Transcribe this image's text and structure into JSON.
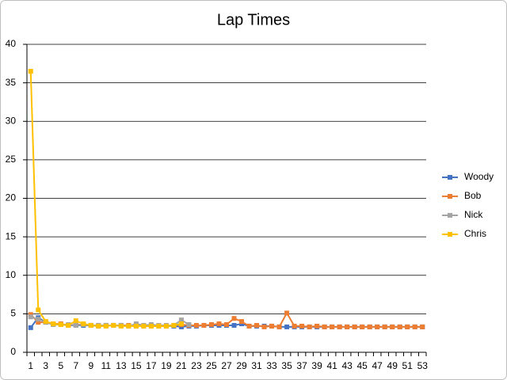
{
  "chart_data": {
    "type": "line",
    "title": "Lap Times",
    "categories": [
      "1",
      null,
      "3",
      null,
      "5",
      null,
      "7",
      null,
      "9",
      null,
      "11",
      null,
      "13",
      null,
      "15",
      null,
      "17",
      null,
      "19",
      null,
      "21",
      null,
      "23",
      null,
      "25",
      null,
      "27",
      null,
      "29",
      null,
      "31",
      null,
      "33",
      null,
      "35",
      null,
      "37",
      null,
      "39",
      null,
      "41",
      null,
      "43",
      null,
      "45",
      null,
      "47",
      null,
      "49",
      null,
      "51",
      null,
      "53"
    ],
    "series": [
      {
        "name": "Woody",
        "color": "#4472c4",
        "values": [
          3.2,
          4.5,
          3.9,
          3.6,
          3.6,
          3.5,
          3.5,
          3.5,
          3.5,
          3.4,
          3.5,
          3.5,
          3.5,
          3.4,
          3.5,
          3.4,
          3.4,
          3.4,
          3.4,
          3.4,
          3.3,
          3.4,
          3.4,
          3.5,
          3.5,
          3.5,
          3.5,
          3.5,
          3.7,
          3.4,
          3.4,
          3.4,
          3.4,
          3.3,
          3.3,
          3.3,
          3.3,
          3.3,
          3.3,
          3.3,
          3.3,
          3.3,
          3.3,
          3.3,
          3.3,
          3.3,
          3.3,
          3.3,
          3.3,
          3.3,
          3.3,
          3.3,
          3.3
        ]
      },
      {
        "name": "Bob",
        "color": "#ed7d31",
        "values": [
          4.9,
          3.9,
          3.9,
          3.7,
          3.7,
          3.5,
          3.6,
          3.6,
          3.5,
          3.5,
          3.5,
          3.5,
          3.5,
          3.5,
          3.4,
          3.5,
          3.4,
          3.4,
          3.4,
          3.5,
          3.6,
          3.5,
          3.5,
          3.5,
          3.6,
          3.7,
          3.6,
          4.4,
          4.0,
          3.4,
          3.5,
          3.3,
          3.4,
          3.3,
          5.1,
          3.4,
          3.4,
          3.3,
          3.4,
          3.3,
          3.3,
          3.3,
          3.3,
          3.3,
          3.3,
          3.3,
          3.3,
          3.3,
          3.3,
          3.3,
          3.3,
          3.3,
          3.3
        ]
      },
      {
        "name": "Nick",
        "color": "#a5a5a5",
        "values": [
          4.6,
          4.3,
          3.9,
          3.6,
          3.6,
          3.6,
          3.5,
          3.6,
          3.5,
          3.5,
          3.5,
          3.5,
          3.5,
          3.4,
          3.7,
          3.5,
          3.6,
          3.5,
          3.5,
          3.5,
          4.2,
          3.6,
          null,
          null,
          null,
          null,
          null,
          null,
          null,
          null,
          null,
          null,
          null,
          null,
          null,
          null,
          null,
          null,
          null,
          null,
          null,
          null,
          null,
          null,
          null,
          null,
          null,
          null,
          null,
          null,
          null,
          null,
          null
        ]
      },
      {
        "name": "Chris",
        "color": "#ffc000",
        "values": [
          36.5,
          5.5,
          4.0,
          3.7,
          3.6,
          3.5,
          4.1,
          3.7,
          3.5,
          3.4,
          3.4,
          3.5,
          3.4,
          3.4,
          3.4,
          3.4,
          3.4,
          3.4,
          3.4,
          3.5,
          3.7,
          null,
          null,
          null,
          null,
          null,
          null,
          null,
          null,
          null,
          null,
          null,
          null,
          null,
          null,
          null,
          null,
          null,
          null,
          null,
          null,
          null,
          null,
          null,
          null,
          null,
          null,
          null,
          null,
          null,
          null,
          null,
          null
        ]
      }
    ],
    "ylim": [
      0,
      40
    ],
    "yticks": [
      0,
      5,
      10,
      15,
      20,
      25,
      30,
      35,
      40
    ],
    "grid": true,
    "legend": "right"
  }
}
